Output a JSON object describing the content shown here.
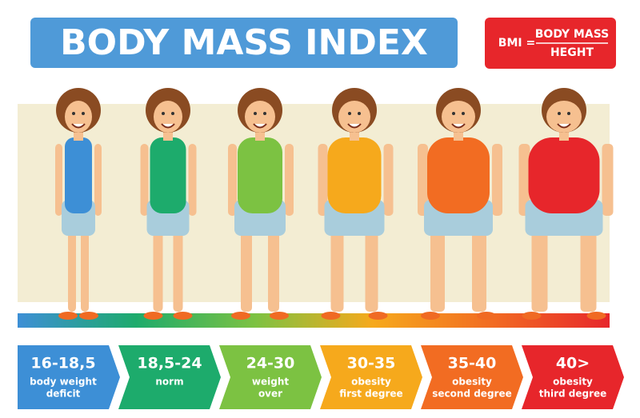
{
  "header": {
    "title": "BODY MASS INDEX"
  },
  "formula": {
    "lhs": "BMI =",
    "numerator": "BODY MASS",
    "denominator": "HEGHT"
  },
  "categories": [
    {
      "range": "16-18,5",
      "lines": [
        "body weight",
        "deficit"
      ],
      "color": "#3d8fd6"
    },
    {
      "range": "18,5-24",
      "lines": [
        "norm"
      ],
      "color": "#1dab6c"
    },
    {
      "range": "24-30",
      "lines": [
        "weight",
        "over"
      ],
      "color": "#7cc242"
    },
    {
      "range": "30-35",
      "lines": [
        "obesity",
        "first degree"
      ],
      "color": "#f6a91c"
    },
    {
      "range": "35-40",
      "lines": [
        "obesity",
        "second degree"
      ],
      "color": "#f26c22"
    },
    {
      "range": "40>",
      "lines": [
        "obesity",
        "third degree"
      ],
      "color": "#e7262b"
    }
  ]
}
